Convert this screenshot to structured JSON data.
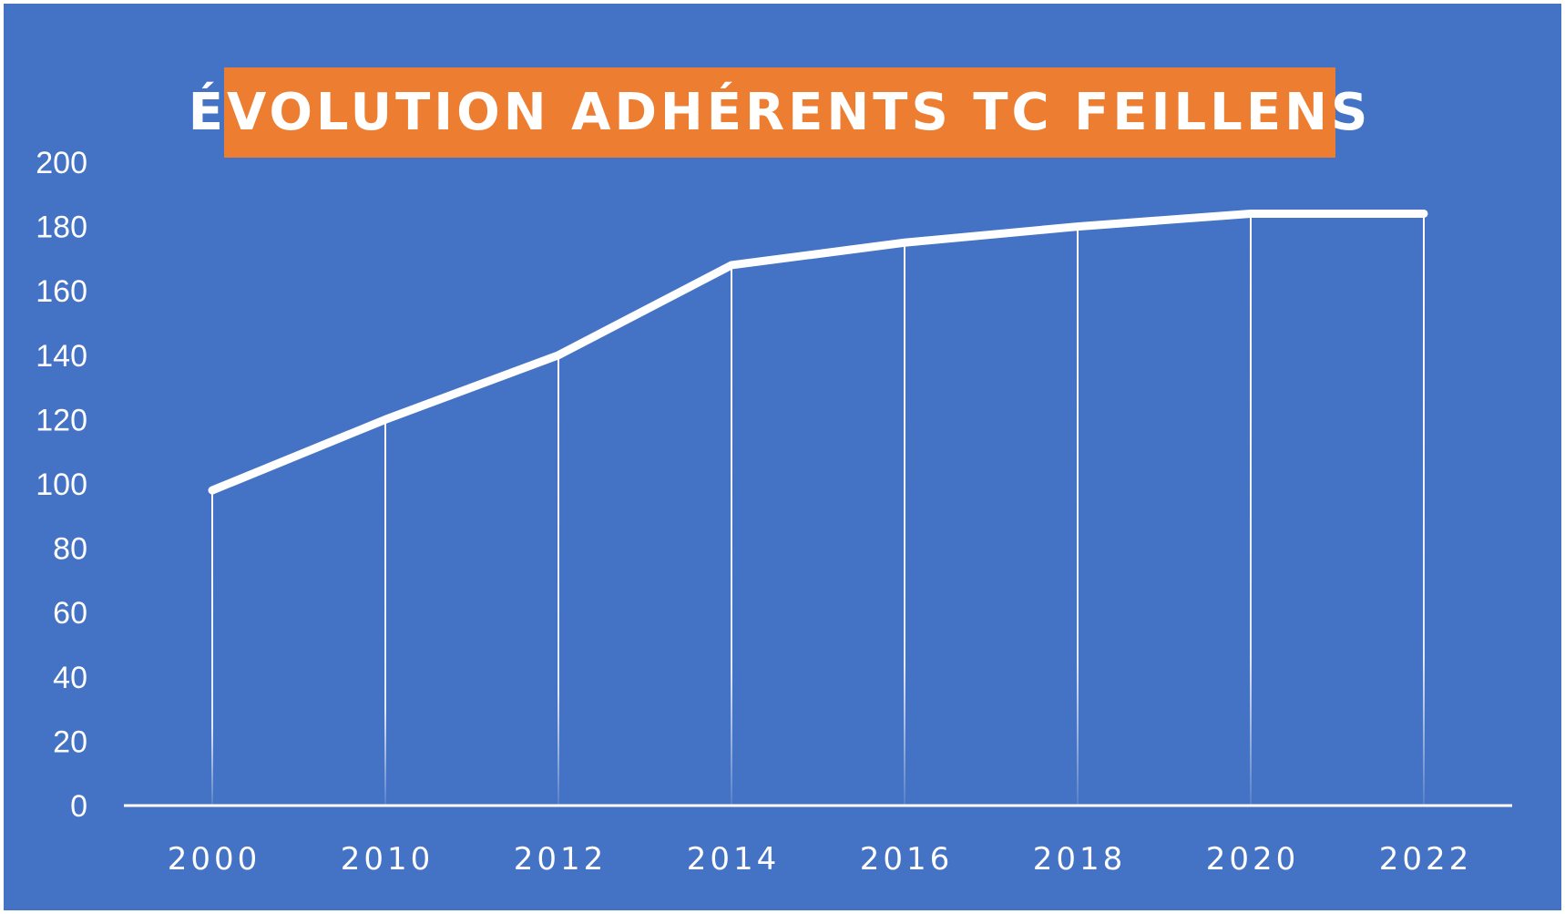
{
  "chart_data": {
    "type": "line",
    "title": "ÉVOLUTION ADHÉRENTS TC FEILLENS",
    "xlabel": "",
    "ylabel": "",
    "categories": [
      "2000",
      "2010",
      "2012",
      "2014",
      "2016",
      "2018",
      "2020",
      "2022"
    ],
    "values": [
      98,
      120,
      140,
      168,
      175,
      180,
      184,
      184
    ],
    "ylim": [
      0,
      200
    ],
    "yticks": [
      0,
      20,
      40,
      60,
      80,
      100,
      120,
      140,
      160,
      180,
      200
    ],
    "drop_lines": true,
    "grid": false,
    "legend": "none",
    "colors": {
      "background": "#4472c4",
      "title_background": "#ed7d31",
      "line": "#ffffff",
      "text": "#ffffff"
    }
  }
}
